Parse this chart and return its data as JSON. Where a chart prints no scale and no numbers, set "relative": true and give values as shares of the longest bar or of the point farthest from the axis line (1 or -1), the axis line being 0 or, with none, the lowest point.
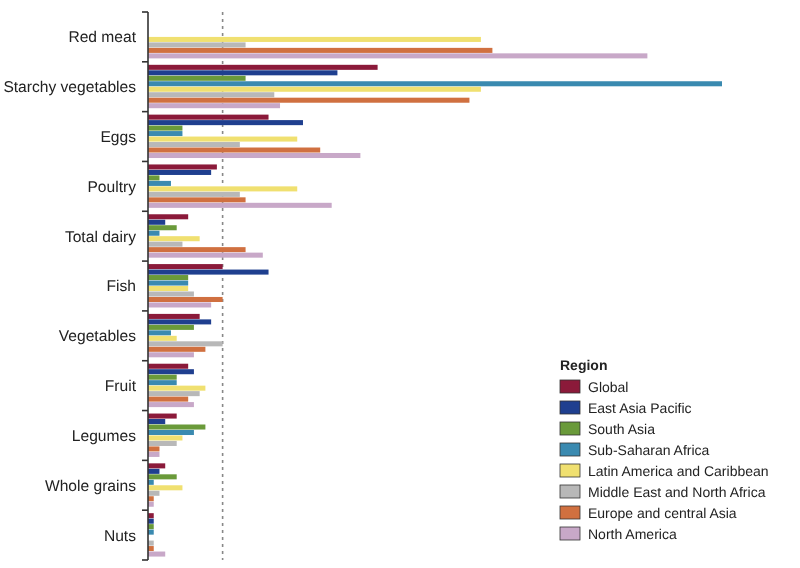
{
  "chart_data": {
    "type": "bar",
    "orientation": "horizontal",
    "relative": true,
    "categories": [
      "Red meat",
      "Starchy vegetables",
      "Eggs",
      "Poultry",
      "Total dairy",
      "Fish",
      "Vegetables",
      "Fruit",
      "Legumes",
      "Whole grains",
      "Nuts"
    ],
    "legend_title": "Region",
    "legend": "bottom right",
    "ref_lines": [
      {
        "axis": "x",
        "value": 0.13,
        "color": "#888888",
        "line_style": "dotted"
      }
    ],
    "series": [
      {
        "name": "Global",
        "color": "#8b1a3a",
        "values": [
          null,
          0.4,
          0.21,
          0.12,
          0.07,
          0.13,
          0.09,
          0.07,
          0.05,
          0.03,
          0.01
        ]
      },
      {
        "name": "East Asia Pacific",
        "color": "#1f3f8f",
        "values": [
          null,
          0.33,
          0.27,
          0.11,
          0.03,
          0.21,
          0.11,
          0.08,
          0.03,
          0.02,
          0.01
        ]
      },
      {
        "name": "South Asia",
        "color": "#6a9a3a",
        "values": [
          null,
          0.17,
          0.06,
          0.02,
          0.05,
          0.07,
          0.08,
          0.05,
          0.1,
          0.05,
          0.01
        ]
      },
      {
        "name": "Sub-Saharan Africa",
        "color": "#3a8ab0",
        "values": [
          null,
          1.0,
          0.06,
          0.04,
          0.02,
          0.07,
          0.04,
          0.05,
          0.08,
          0.01,
          0.01
        ]
      },
      {
        "name": "Latin America and Caribbean",
        "color": "#f0e070",
        "values": [
          0.58,
          0.58,
          0.26,
          0.26,
          0.09,
          0.07,
          0.05,
          0.1,
          0.06,
          0.06,
          0.0
        ]
      },
      {
        "name": "Middle East and North Africa",
        "color": "#b8b8b8",
        "values": [
          0.17,
          0.22,
          0.16,
          0.16,
          0.06,
          0.08,
          0.13,
          0.09,
          0.05,
          0.02,
          0.01
        ]
      },
      {
        "name": "Europe and central  Asia",
        "color": "#d07040",
        "values": [
          0.6,
          0.56,
          0.3,
          0.17,
          0.17,
          0.13,
          0.1,
          0.07,
          0.02,
          0.01,
          0.01
        ]
      },
      {
        "name": "North America",
        "color": "#c8a8c8",
        "values": [
          0.87,
          0.23,
          0.37,
          0.32,
          0.2,
          0.11,
          0.08,
          0.08,
          0.02,
          0.01,
          0.03
        ]
      }
    ]
  }
}
